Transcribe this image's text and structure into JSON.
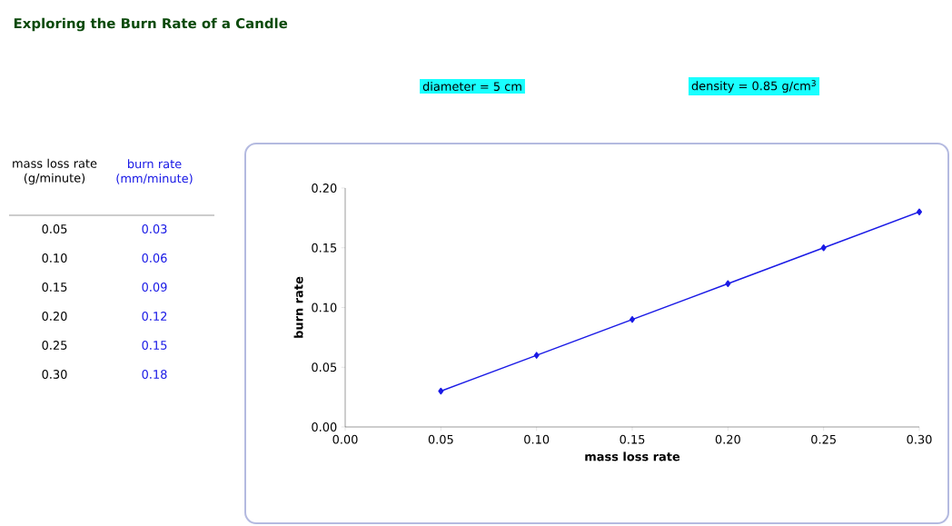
{
  "chart_data": {
    "type": "line",
    "title": "Exploring the Burn Rate of a Candle",
    "xlabel": "mass loss rate",
    "ylabel": "burn rate",
    "x": [
      0.05,
      0.1,
      0.15,
      0.2,
      0.25,
      0.3
    ],
    "values": [
      0.03,
      0.06,
      0.09,
      0.12,
      0.15,
      0.18
    ],
    "color": "#1a1ae6",
    "marker": "diamond",
    "xlim": [
      0,
      0.3
    ],
    "ylim": [
      0,
      0.2
    ],
    "xticks": [
      {
        "value": 0,
        "label": "0.00"
      },
      {
        "value": 0.05,
        "label": "0.05"
      },
      {
        "value": 0.1,
        "label": "0.10"
      },
      {
        "value": 0.15,
        "label": "0.15"
      },
      {
        "value": 0.2,
        "label": "0.20"
      },
      {
        "value": 0.25,
        "label": "0.25"
      },
      {
        "value": 0.3,
        "label": "0.30"
      }
    ],
    "yticks": [
      {
        "value": 0,
        "label": "0.00"
      },
      {
        "value": 0.05,
        "label": "0.05"
      },
      {
        "value": 0.1,
        "label": "0.10"
      },
      {
        "value": 0.15,
        "label": "0.15"
      },
      {
        "value": 0.2,
        "label": "0.20"
      }
    ],
    "annotations": [
      "diameter = 5 cm",
      "density = 0.85 g/cm$^{3}$",
      "mass loss rate (g/minute)",
      "burn rate (mm/minute)",
      "0.05",
      "0.03",
      "0.10",
      "0.06",
      "0.15",
      "0.09",
      "0.20",
      "0.12",
      "0.25",
      "0.15",
      "0.30",
      "0.18"
    ]
  }
}
